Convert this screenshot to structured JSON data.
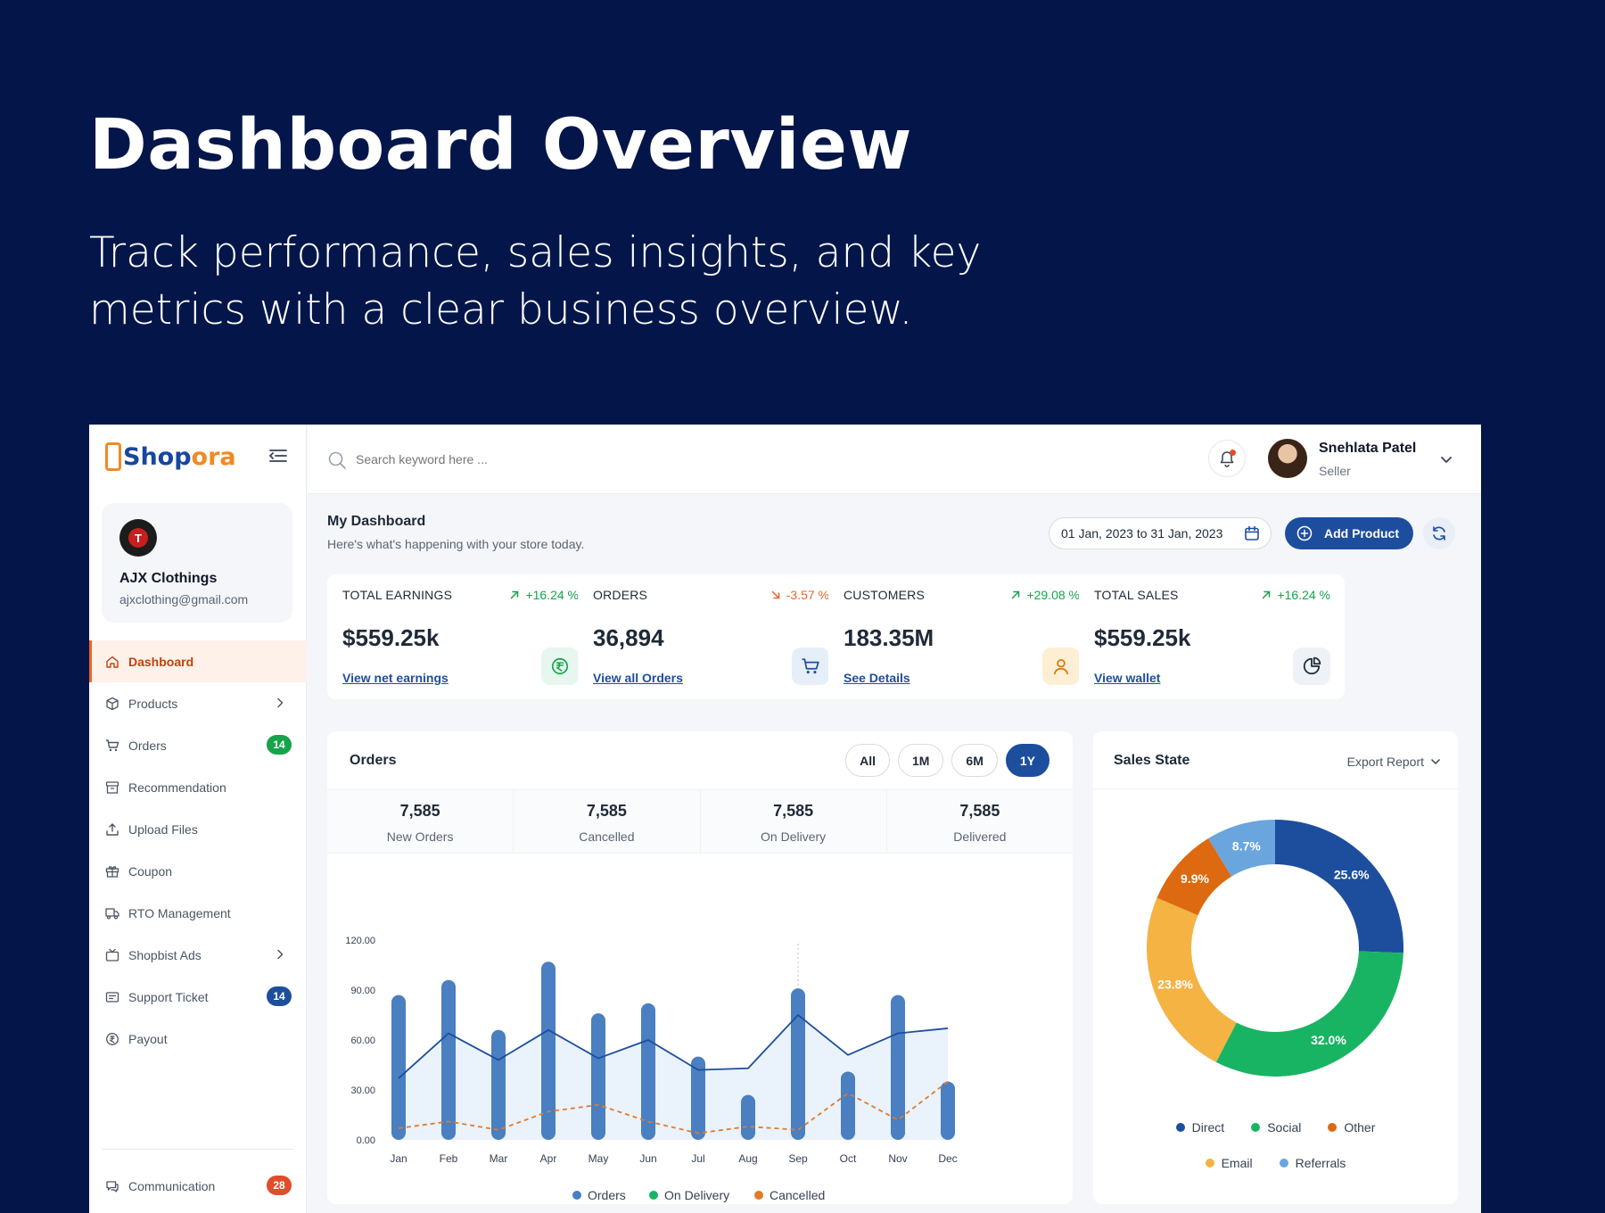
{
  "hero": {
    "title": "Dashboard Overview",
    "subtitle": "Track performance, sales insights, and key metrics with a clear business overview."
  },
  "brand": {
    "part1": "Shop",
    "part2": "ora"
  },
  "store": {
    "name": "AJX Clothings",
    "email": "ajxclothing@gmail.com",
    "avatar_letter": "T"
  },
  "nav": {
    "items": [
      {
        "label": "Dashboard",
        "icon": "home-icon",
        "active": true
      },
      {
        "label": "Products",
        "icon": "box-icon",
        "chevron": true
      },
      {
        "label": "Orders",
        "icon": "cart-icon",
        "badge": "14",
        "badge_color": "green"
      },
      {
        "label": "Recommendation",
        "icon": "archive-icon"
      },
      {
        "label": "Upload Files",
        "icon": "upload-icon"
      },
      {
        "label": "Coupon",
        "icon": "gift-icon"
      },
      {
        "label": "RTO Management",
        "icon": "truck-icon"
      },
      {
        "label": "Shopbist Ads",
        "icon": "tv-icon",
        "chevron": true
      },
      {
        "label": "Support Ticket",
        "icon": "ticket-icon",
        "badge": "14",
        "badge_color": "blue"
      },
      {
        "label": "Payout",
        "icon": "coin-icon"
      }
    ],
    "bottom": {
      "label": "Communication",
      "icon": "chat-icon",
      "badge": "28",
      "badge_color": "red"
    }
  },
  "topbar": {
    "search_placeholder": "Search keyword here ...",
    "user_name": "Snehlata Patel",
    "user_role": "Seller"
  },
  "dashboard": {
    "title": "My Dashboard",
    "subtitle": "Here's what's happening with your store today.",
    "date_range": "01 Jan, 2023 to 31 Jan, 2023",
    "add_product": "Add Product"
  },
  "stats": [
    {
      "label": "TOTAL EARNINGS",
      "change": "+16.24 %",
      "trend": "up",
      "value": "$559.25k",
      "link": "View net earnings",
      "icon": "rupee-icon",
      "icon_bg": "#e7f6ee",
      "icon_color": "#16a34a"
    },
    {
      "label": "ORDERS",
      "change": "-3.57 %",
      "trend": "down",
      "value": "36,894",
      "link": "View all Orders",
      "icon": "cart-icon",
      "icon_bg": "#e6eef8",
      "icon_color": "#1d4e9e"
    },
    {
      "label": "CUSTOMERS",
      "change": "+29.08 %",
      "trend": "up",
      "value": "183.35M",
      "link": "See Details",
      "icon": "user-icon",
      "icon_bg": "#fdefd4",
      "icon_color": "#d97706"
    },
    {
      "label": "TOTAL SALES",
      "change": "+16.24 %",
      "trend": "up",
      "value": "$559.25k",
      "link": "View wallet",
      "icon": "pie-chart-icon",
      "icon_bg": "#eef2f7",
      "icon_color": "#1f2937"
    }
  ],
  "orders_panel": {
    "title": "Orders",
    "ranges": [
      "All",
      "1M",
      "6M",
      "1Y"
    ],
    "active_range": "1Y",
    "summary": [
      {
        "value": "7,585",
        "label": "New Orders"
      },
      {
        "value": "7,585",
        "label": "Cancelled"
      },
      {
        "value": "7,585",
        "label": "On Delivery"
      },
      {
        "value": "7,585",
        "label": "Delivered"
      }
    ]
  },
  "chart_data": {
    "type": "bar",
    "categories": [
      "Jan",
      "Feb",
      "Mar",
      "Apr",
      "May",
      "Jun",
      "Jul",
      "Aug",
      "Sep",
      "Oct",
      "Nov",
      "Dec"
    ],
    "ylim": [
      0,
      120
    ],
    "yticks": [
      "0.00",
      "30.00",
      "60.00",
      "90.00",
      "120.00"
    ],
    "grid": false,
    "legend_position": "bottom",
    "series": [
      {
        "name": "Orders",
        "kind": "bar",
        "color": "#4a7fc1",
        "values": [
          87,
          96,
          66,
          107,
          76,
          82,
          50,
          27,
          91,
          41,
          87,
          35
        ]
      },
      {
        "name": "On Delivery",
        "kind": "line",
        "color": "#1d4e9e",
        "values": [
          37,
          64,
          48,
          66,
          49,
          60,
          42,
          43,
          75,
          51,
          64,
          67
        ]
      },
      {
        "name": "Cancelled",
        "kind": "dashed-line",
        "color": "#e07b2a",
        "values": [
          7,
          11,
          6,
          17,
          21,
          11,
          4,
          8,
          6,
          28,
          12,
          35
        ]
      }
    ]
  },
  "sales_panel": {
    "title": "Sales State",
    "export": "Export Report",
    "donut": [
      {
        "name": "Direct",
        "value": 25.6,
        "label": "25.6%",
        "color": "#1d4e9e"
      },
      {
        "name": "Social",
        "value": 32.0,
        "label": "32.0%",
        "color": "#19b463"
      },
      {
        "name": "Email",
        "value": 23.8,
        "label": "23.8%",
        "color": "#f4b343"
      },
      {
        "name": "Other",
        "value": 9.9,
        "label": "9.9%",
        "color": "#dd6a10"
      },
      {
        "name": "Referrals",
        "value": 8.7,
        "label": "8.7%",
        "color": "#6aa5de"
      }
    ],
    "legend_row1": [
      "Direct",
      "Social",
      "Other"
    ],
    "legend_row2": [
      "Email",
      "Referrals"
    ]
  }
}
